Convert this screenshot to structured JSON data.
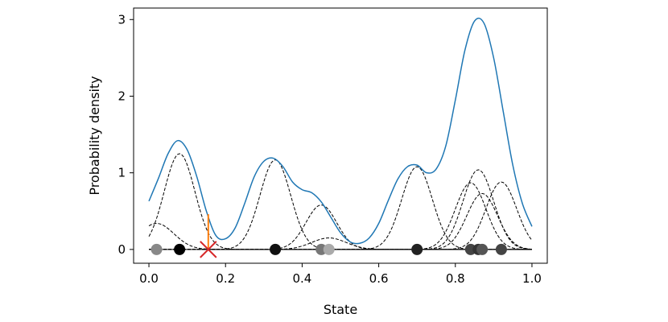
{
  "chart_data": {
    "type": "line",
    "xlabel": "State",
    "ylabel": "Probability density",
    "xlim": [
      -0.04,
      1.04
    ],
    "ylim": [
      -0.18,
      3.15
    ],
    "xticks": [
      0.0,
      0.2,
      0.4,
      0.6,
      0.8,
      1.0
    ],
    "xtick_labels": [
      "0.0",
      "0.2",
      "0.4",
      "0.6",
      "0.8",
      "1.0"
    ],
    "yticks": [
      0,
      1,
      2,
      3
    ],
    "ytick_labels": [
      "0",
      "1",
      "2",
      "3"
    ],
    "grid": false,
    "density_color": "#1f77b4",
    "kernel_color": "#000000",
    "baseline_color": "#000000",
    "query_color": "#d62728",
    "query_stem_color": "#ff7f0e",
    "density_curve": {
      "x": [
        0.0,
        0.025,
        0.05,
        0.075,
        0.1,
        0.125,
        0.15,
        0.175,
        0.2,
        0.225,
        0.25,
        0.275,
        0.3,
        0.325,
        0.35,
        0.375,
        0.4,
        0.425,
        0.45,
        0.475,
        0.5,
        0.525,
        0.55,
        0.575,
        0.6,
        0.625,
        0.65,
        0.675,
        0.7,
        0.725,
        0.75,
        0.775,
        0.8,
        0.825,
        0.85,
        0.875,
        0.9,
        0.925,
        0.95,
        0.975,
        1.0
      ],
      "y": [
        0.63,
        0.93,
        1.25,
        1.42,
        1.3,
        0.95,
        0.5,
        0.18,
        0.14,
        0.28,
        0.6,
        0.95,
        1.15,
        1.19,
        1.08,
        0.88,
        0.78,
        0.74,
        0.62,
        0.42,
        0.22,
        0.1,
        0.08,
        0.15,
        0.34,
        0.64,
        0.92,
        1.08,
        1.1,
        1.0,
        1.05,
        1.35,
        1.95,
        2.6,
        2.98,
        2.95,
        2.5,
        1.8,
        1.1,
        0.6,
        0.3
      ]
    },
    "kernels": [
      {
        "center": 0.02,
        "peak": 0.34,
        "width": 0.045
      },
      {
        "center": 0.08,
        "peak": 1.25,
        "width": 0.04
      },
      {
        "center": 0.33,
        "peak": 1.17,
        "width": 0.04
      },
      {
        "center": 0.45,
        "peak": 0.58,
        "width": 0.04
      },
      {
        "center": 0.47,
        "peak": 0.15,
        "width": 0.045
      },
      {
        "center": 0.7,
        "peak": 1.08,
        "width": 0.04
      },
      {
        "center": 0.84,
        "peak": 0.87,
        "width": 0.04
      },
      {
        "center": 0.86,
        "peak": 1.04,
        "width": 0.04
      },
      {
        "center": 0.87,
        "peak": 0.73,
        "width": 0.04
      },
      {
        "center": 0.92,
        "peak": 0.88,
        "width": 0.04
      }
    ],
    "sample_points": [
      {
        "x": 0.02,
        "color": "#888888"
      },
      {
        "x": 0.08,
        "color": "#000000"
      },
      {
        "x": 0.33,
        "color": "#111111"
      },
      {
        "x": 0.45,
        "color": "#777777"
      },
      {
        "x": 0.47,
        "color": "#aaaaaa"
      },
      {
        "x": 0.7,
        "color": "#222222"
      },
      {
        "x": 0.84,
        "color": "#444444"
      },
      {
        "x": 0.86,
        "color": "#333333"
      },
      {
        "x": 0.87,
        "color": "#555555"
      },
      {
        "x": 0.92,
        "color": "#444444"
      }
    ],
    "baseline": {
      "x0": 0.0,
      "x1": 1.0
    },
    "query_point": {
      "x": 0.155,
      "density": 0.46
    }
  }
}
